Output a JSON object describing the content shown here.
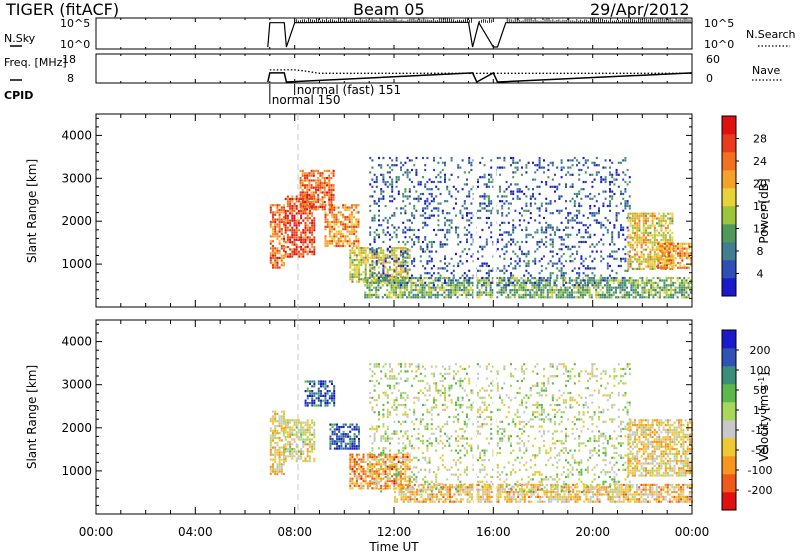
{
  "header": {
    "title": "TIGER (fitACF)",
    "beam": "Beam 05",
    "date": "29/Apr/2012"
  },
  "colors": {
    "power_scale": [
      "#1a1acc",
      "#2e4fb5",
      "#3f7f8f",
      "#4f9a5a",
      "#9bc53a",
      "#e8d23a",
      "#f4a22a",
      "#f27020",
      "#ea3a1c",
      "#e01010"
    ],
    "velocity_scale": [
      "#e01010",
      "#f05a18",
      "#f7961e",
      "#f0c830",
      "#c8c8c8",
      "#a8d85a",
      "#5cb84a",
      "#3a8f7a",
      "#2e52b5",
      "#1a1acc"
    ]
  },
  "chart_data": [
    {
      "type": "line",
      "panel": "noise",
      "left_label": "N.Sky",
      "right_label": "N.Search",
      "left_ticks": [
        "10^5",
        "10^0"
      ],
      "right_ticks": [
        "10^5",
        "10^0"
      ],
      "scale": "log",
      "ylim": [
        1,
        100000
      ],
      "x": [
        "06:55",
        "07:00",
        "07:35",
        "07:40",
        "08:00",
        "09:00",
        "12:00",
        "15:00",
        "15:10",
        "15:25",
        "16:00",
        "16:10",
        "16:30",
        "20:00",
        "24:00"
      ],
      "y": [
        1,
        31623,
        31623,
        1,
        31623,
        35000,
        38000,
        38000,
        1,
        31623,
        1,
        1,
        31623,
        30000,
        30000
      ]
    },
    {
      "type": "line",
      "panel": "frequency",
      "left_label": "Freq. [MHz]",
      "right_label": "Nave",
      "left_ticks": [
        "18",
        "8"
      ],
      "right_ticks": [
        "60",
        "0"
      ],
      "ylim": [
        8,
        18
      ],
      "y2lim": [
        0,
        60
      ],
      "series": [
        {
          "name": "Freq.",
          "x": [
            "06:55",
            "07:00",
            "07:35",
            "07:40",
            "15:10",
            "15:20",
            "16:00",
            "16:10",
            "24:00"
          ],
          "y": [
            8,
            11.5,
            11.5,
            8,
            11.5,
            8,
            11.5,
            8,
            11.5
          ]
        },
        {
          "name": "Nave",
          "x": [
            "07:00",
            "08:00",
            "08:20",
            "09:00",
            "24:00"
          ],
          "y": [
            28,
            28,
            26,
            20,
            20
          ]
        }
      ]
    },
    {
      "type": "table",
      "panel": "cpid",
      "label": "CPID",
      "entries": [
        {
          "name": "normal 150",
          "start": "07:00"
        },
        {
          "name": "normal (fast) 151",
          "start": "08:00"
        }
      ]
    },
    {
      "type": "heatmap",
      "panel": "power",
      "xlabel": "",
      "ylabel": "Slant Range [km]",
      "xlim": [
        "00:00",
        "24:00"
      ],
      "ylim": [
        0,
        4500
      ],
      "yticks": [
        1000,
        2000,
        3000,
        4000
      ],
      "colorbar": {
        "label": "Power [dB]",
        "ticks": [
          4,
          8,
          12,
          16,
          20,
          24,
          28
        ],
        "range": [
          0,
          32
        ]
      },
      "regions": [
        {
          "t": [
            7.0,
            7.6
          ],
          "r": [
            900,
            2400
          ],
          "value": 24
        },
        {
          "t": [
            7.6,
            8.8
          ],
          "r": [
            1200,
            2600
          ],
          "value": 27
        },
        {
          "t": [
            8.2,
            9.6
          ],
          "r": [
            2300,
            3200
          ],
          "value": 25
        },
        {
          "t": [
            9.2,
            10.6
          ],
          "r": [
            1400,
            2400
          ],
          "value": 22
        },
        {
          "t": [
            10.2,
            12.6
          ],
          "r": [
            600,
            1400
          ],
          "value": 16
        },
        {
          "t": [
            10.8,
            24.0
          ],
          "r": [
            200,
            700
          ],
          "value": 12
        },
        {
          "t": [
            11.0,
            21.5
          ],
          "r": [
            500,
            3500
          ],
          "value": 6
        },
        {
          "t": [
            21.4,
            23.2
          ],
          "r": [
            900,
            2200
          ],
          "value": 18
        },
        {
          "t": [
            22.6,
            24.0
          ],
          "r": [
            900,
            1500
          ],
          "value": 22
        }
      ]
    },
    {
      "type": "heatmap",
      "panel": "velocity",
      "xlabel": "Time UT",
      "ylabel": "Slant Range [km]",
      "xlim": [
        "00:00",
        "24:00"
      ],
      "ylim": [
        0,
        4500
      ],
      "yticks": [
        1000,
        2000,
        3000,
        4000
      ],
      "xticks": [
        "00:00",
        "04:00",
        "08:00",
        "12:00",
        "16:00",
        "20:00",
        "00:00"
      ],
      "colorbar": {
        "label": "Velocity [m s^-1]",
        "ticks": [
          -200,
          -100,
          -50,
          -15,
          15,
          50,
          100,
          200
        ],
        "range": [
          -250,
          250
        ]
      },
      "regions": [
        {
          "t": [
            7.0,
            7.6
          ],
          "r": [
            900,
            2400
          ],
          "value": -60
        },
        {
          "t": [
            7.6,
            8.8
          ],
          "r": [
            1200,
            2200
          ],
          "value": -30
        },
        {
          "t": [
            8.4,
            9.6
          ],
          "r": [
            2500,
            3100
          ],
          "value": 180
        },
        {
          "t": [
            9.4,
            10.6
          ],
          "r": [
            1500,
            2100
          ],
          "value": 160
        },
        {
          "t": [
            10.2,
            12.6
          ],
          "r": [
            600,
            1400
          ],
          "value": -120
        },
        {
          "t": [
            12.0,
            24.0
          ],
          "r": [
            300,
            700
          ],
          "value": -80
        },
        {
          "t": [
            11.0,
            21.5
          ],
          "r": [
            500,
            3500
          ],
          "value": 0
        },
        {
          "t": [
            21.4,
            24.0
          ],
          "r": [
            900,
            2200
          ],
          "value": -60
        }
      ]
    }
  ]
}
